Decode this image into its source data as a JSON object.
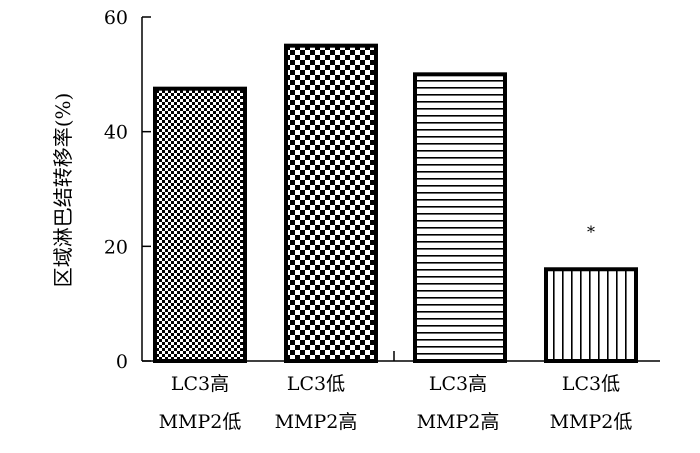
{
  "chart_data": {
    "type": "bar",
    "categories": [
      [
        "LC3高",
        "MMP2低"
      ],
      [
        "LC3低",
        "MMP2高"
      ],
      [
        "LC3高",
        "MMP2高"
      ],
      [
        "LC3低",
        "MMP2低"
      ]
    ],
    "values": [
      47.5,
      55,
      50,
      16
    ],
    "patterns": [
      "fine-checker",
      "coarse-checker",
      "horizontal-stripes",
      "vertical-stripes"
    ],
    "ylabel": "区域淋巴结转移率(%)",
    "xlabel": "",
    "title": "",
    "ylim": [
      0,
      60
    ],
    "yticks": [
      0,
      20,
      40,
      60
    ],
    "annotations": [
      {
        "category_index": 3,
        "text": "*"
      }
    ],
    "grid": false,
    "legend": "none",
    "colors": {
      "bar_fill": "#ffffff",
      "bar_stroke": "#000000",
      "axis": "#000000"
    }
  }
}
